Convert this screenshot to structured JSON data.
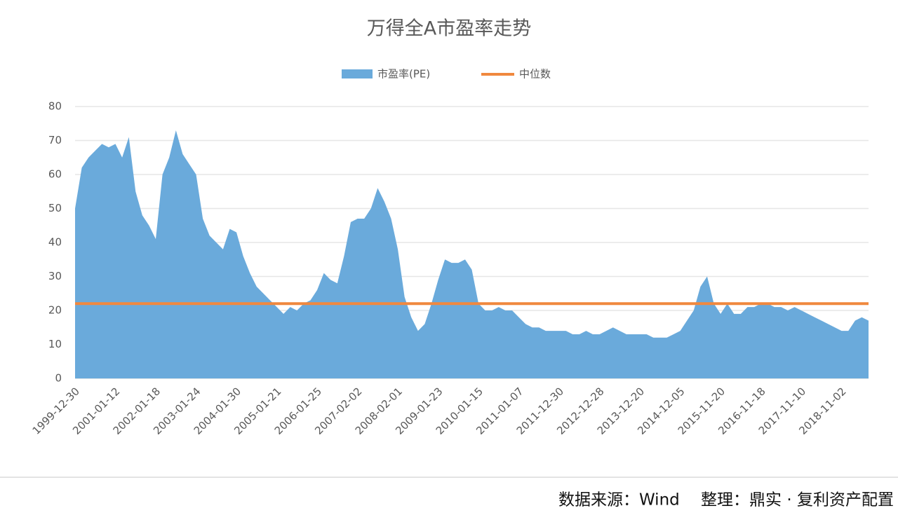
{
  "chart_data": {
    "type": "area",
    "title": "万得全A市盈率走势",
    "footer": "数据来源：Wind　 整理：鼎实 · 复利资产配置",
    "categories": [
      "1999-12-30",
      null,
      null,
      null,
      null,
      null,
      "2001-01-12",
      null,
      null,
      null,
      null,
      null,
      "2002-01-18",
      null,
      null,
      null,
      null,
      null,
      "2003-01-24",
      null,
      null,
      null,
      null,
      null,
      "2004-01-30",
      null,
      null,
      null,
      null,
      null,
      "2005-01-21",
      null,
      null,
      null,
      null,
      null,
      "2006-01-25",
      null,
      null,
      null,
      null,
      null,
      "2007-02-02",
      null,
      null,
      null,
      null,
      null,
      "2008-02-01",
      null,
      null,
      null,
      null,
      null,
      "2009-01-23",
      null,
      null,
      null,
      null,
      null,
      "2010-01-15",
      null,
      null,
      null,
      null,
      null,
      "2011-01-07",
      null,
      null,
      null,
      null,
      null,
      "2011-12-30",
      null,
      null,
      null,
      null,
      null,
      "2012-12-28",
      null,
      null,
      null,
      null,
      null,
      "2013-12-20",
      null,
      null,
      null,
      null,
      null,
      "2014-12-05",
      null,
      null,
      null,
      null,
      null,
      "2015-11-20",
      null,
      null,
      null,
      null,
      null,
      "2016-11-18",
      null,
      null,
      null,
      null,
      null,
      "2017-11-10",
      null,
      null,
      null,
      null,
      null,
      "2018-11-02",
      null,
      null,
      null,
      null
    ],
    "series": [
      {
        "name": "市盈率(PE)",
        "color": "#6aaadb",
        "values": [
          50,
          62,
          65,
          67,
          69,
          68,
          69,
          65,
          71,
          55,
          48,
          45,
          41,
          60,
          65,
          73,
          66,
          63,
          60,
          47,
          42,
          40,
          38,
          44,
          43,
          36,
          31,
          27,
          25,
          23,
          21,
          19,
          21,
          20,
          22,
          23,
          26,
          31,
          29,
          28,
          36,
          46,
          47,
          47,
          50,
          56,
          52,
          47,
          38,
          24,
          18,
          14,
          16,
          22,
          29,
          35,
          34,
          34,
          35,
          32,
          22,
          20,
          20,
          21,
          20,
          20,
          18,
          16,
          15,
          15,
          14,
          14,
          14,
          14,
          13,
          13,
          14,
          13,
          13,
          14,
          15,
          14,
          13,
          13,
          13,
          13,
          12,
          12,
          12,
          13,
          14,
          17,
          20,
          27,
          30,
          22,
          19,
          22,
          19,
          19,
          21,
          21,
          22,
          22,
          21,
          21,
          20,
          21,
          20,
          19,
          18,
          17,
          16,
          15,
          14,
          14,
          17,
          18,
          17
        ]
      }
    ],
    "reference_line": {
      "name": "中位数",
      "color": "#f0883e",
      "value": 22
    },
    "ylim": [
      0,
      80
    ],
    "yticks": [
      0,
      10,
      20,
      30,
      40,
      50,
      60,
      70,
      80
    ],
    "grid": true
  }
}
